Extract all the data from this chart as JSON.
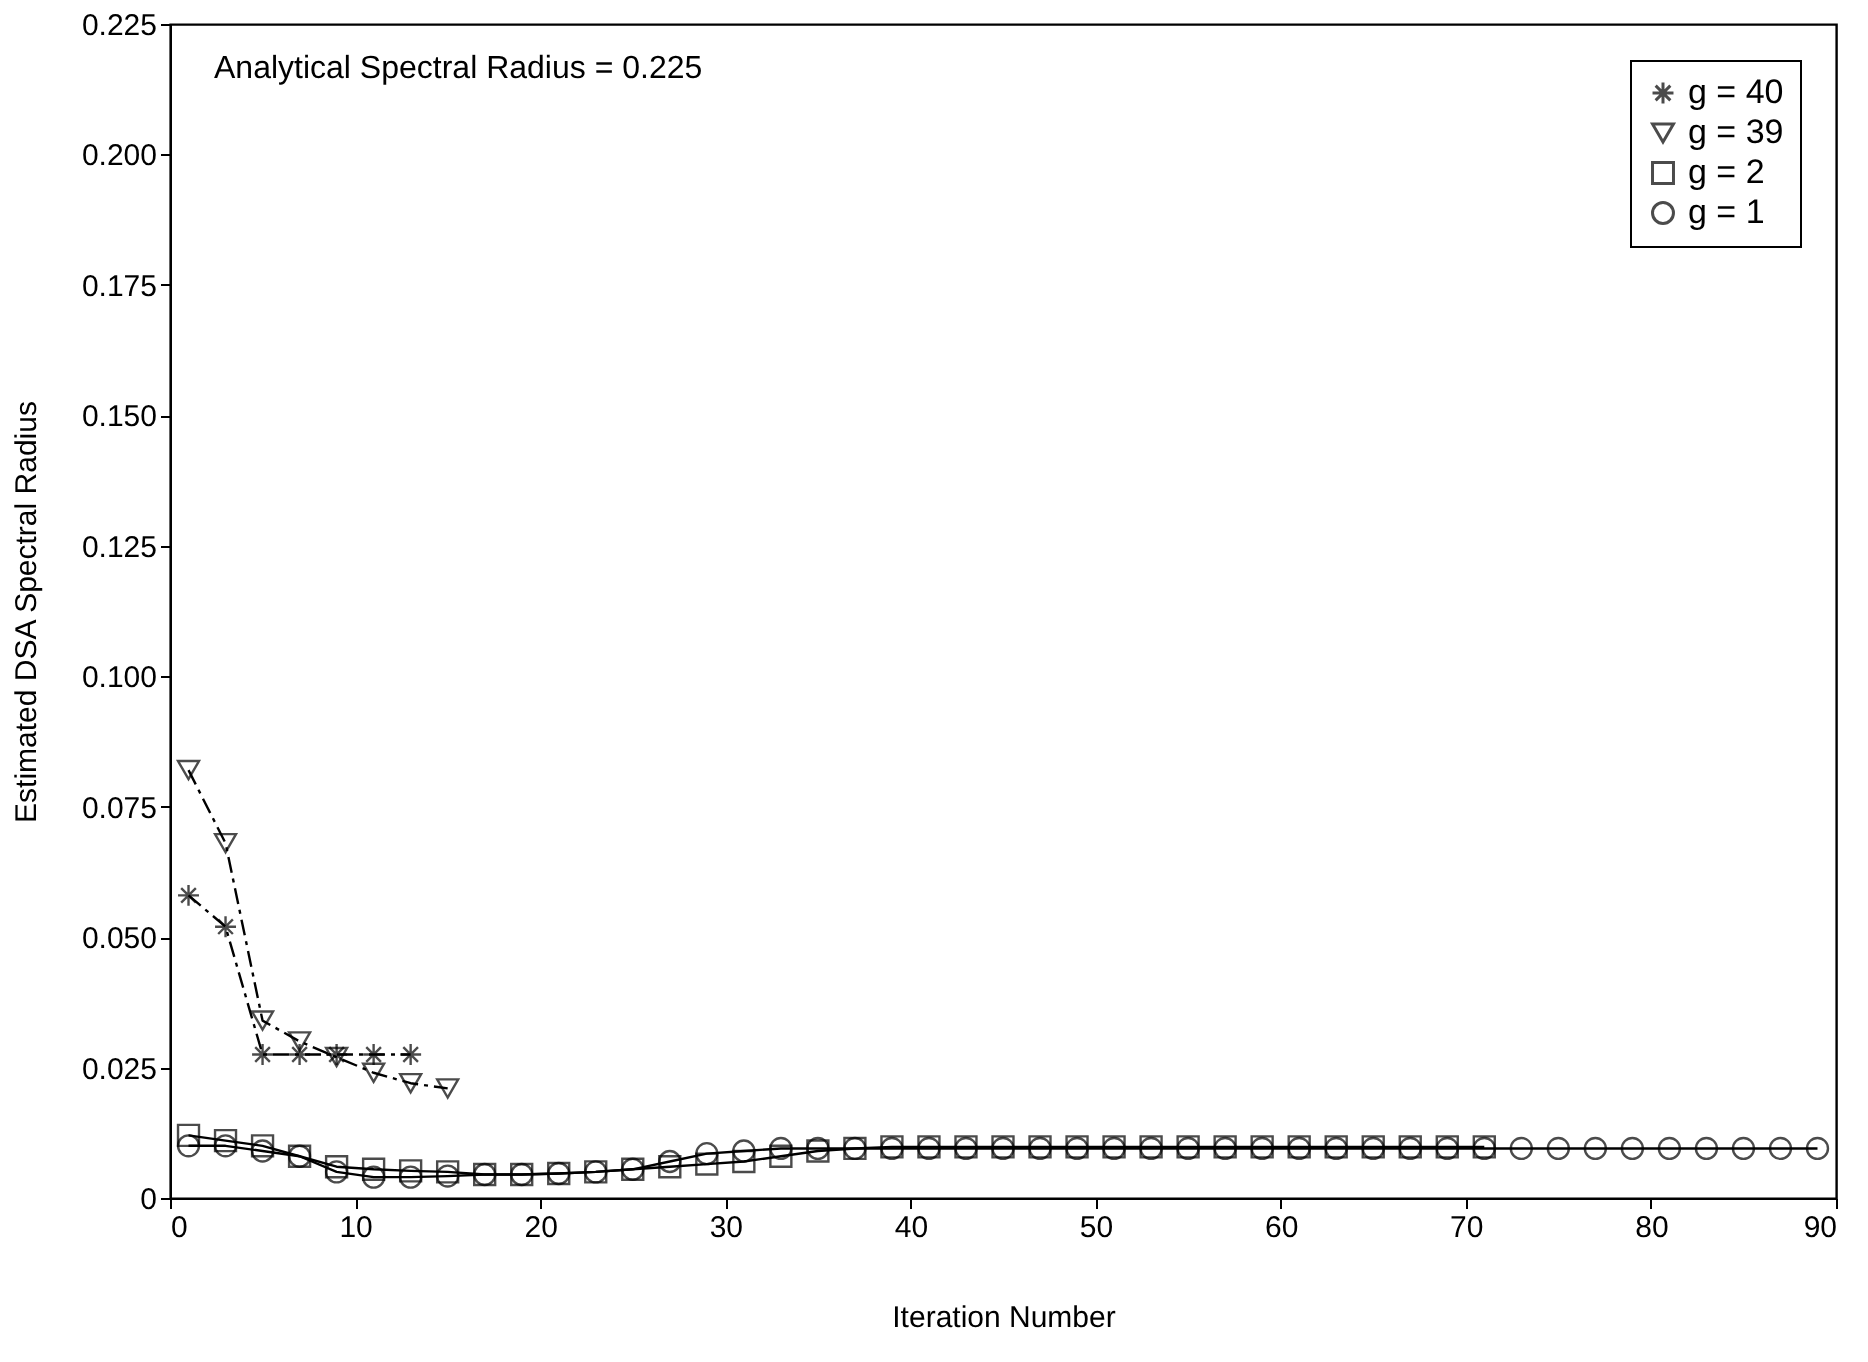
{
  "chart_data": {
    "type": "line",
    "xlabel": "Iteration Number",
    "ylabel": "Estimated DSA Spectral Radius",
    "annotations": [
      "Analytical Spectral Radius = 0.225"
    ],
    "xlim": [
      0,
      90
    ],
    "xticks": [
      0,
      10,
      20,
      30,
      40,
      50,
      60,
      70,
      80,
      90
    ],
    "ylim": [
      0,
      0.225
    ],
    "yticks": [
      0,
      {
        "value": 0.025,
        "label": "0.025"
      },
      {
        "value": 0.05,
        "label": "0.050"
      },
      {
        "value": 0.075,
        "label": "0.075"
      },
      {
        "value": 0.1,
        "label": "0.100"
      },
      {
        "value": 0.125,
        "label": "0.125"
      },
      {
        "value": 0.15,
        "label": "0.150"
      },
      {
        "value": 0.175,
        "label": "0.175"
      },
      {
        "value": 0.2,
        "label": "0.200"
      },
      {
        "value": 0.225,
        "label": "0.225"
      }
    ],
    "grid": false,
    "legend": "top right",
    "series": [
      {
        "name": "g = 40",
        "color": "#000000",
        "marker": "cross",
        "line_style": "dashed",
        "x": [
          1,
          3,
          5,
          7,
          9,
          11,
          13
        ],
        "values": [
          0.058,
          0.052,
          0.0275,
          0.0275,
          0.0275,
          0.0275,
          0.0275
        ]
      },
      {
        "name": "g = 39",
        "color": "#000000",
        "marker": "triangle",
        "line_style": "dashed",
        "x": [
          1,
          3,
          5,
          7,
          9,
          11,
          13,
          15
        ],
        "values": [
          0.082,
          0.068,
          0.034,
          0.03,
          0.027,
          0.024,
          0.022,
          0.021
        ]
      },
      {
        "name": "g = 2",
        "color": "#000000",
        "marker": "square",
        "line_style": "solid",
        "x": [
          1,
          3,
          5,
          7,
          9,
          11,
          13,
          15,
          17,
          19,
          21,
          23,
          25,
          27,
          29,
          31,
          33,
          35,
          37,
          39,
          41,
          43,
          45,
          47,
          49,
          51,
          53,
          55,
          57,
          59,
          61,
          63,
          65,
          67,
          69,
          71
        ],
        "values": [
          0.012,
          0.011,
          0.01,
          0.008,
          0.006,
          0.0055,
          0.0052,
          0.005,
          0.0045,
          0.0045,
          0.0047,
          0.005,
          0.0055,
          0.006,
          0.0065,
          0.007,
          0.008,
          0.009,
          0.0095,
          0.0098,
          0.0098,
          0.0098,
          0.0098,
          0.0098,
          0.0098,
          0.0098,
          0.0098,
          0.0098,
          0.0098,
          0.0098,
          0.0098,
          0.0098,
          0.0098,
          0.0098,
          0.0098,
          0.0098
        ]
      },
      {
        "name": "g = 1",
        "color": "#000000",
        "marker": "circle",
        "line_style": "solid",
        "x": [
          1,
          3,
          5,
          7,
          9,
          11,
          13,
          15,
          17,
          19,
          21,
          23,
          25,
          27,
          29,
          31,
          33,
          35,
          37,
          39,
          41,
          43,
          45,
          47,
          49,
          51,
          53,
          55,
          57,
          59,
          61,
          63,
          65,
          67,
          69,
          71,
          73,
          75,
          77,
          79,
          81,
          83,
          85,
          87,
          89
        ],
        "values": [
          0.01,
          0.01,
          0.009,
          0.008,
          0.005,
          0.004,
          0.004,
          0.0042,
          0.0045,
          0.0045,
          0.0047,
          0.005,
          0.0055,
          0.007,
          0.0085,
          0.009,
          0.0095,
          0.0095,
          0.0095,
          0.0095,
          0.0095,
          0.0095,
          0.0095,
          0.0095,
          0.0095,
          0.0095,
          0.0095,
          0.0095,
          0.0095,
          0.0095,
          0.0095,
          0.0095,
          0.0095,
          0.0095,
          0.0095,
          0.0095,
          0.0095,
          0.0095,
          0.0095,
          0.0095,
          0.0095,
          0.0095,
          0.0095,
          0.0095,
          0.0095
        ]
      }
    ]
  }
}
